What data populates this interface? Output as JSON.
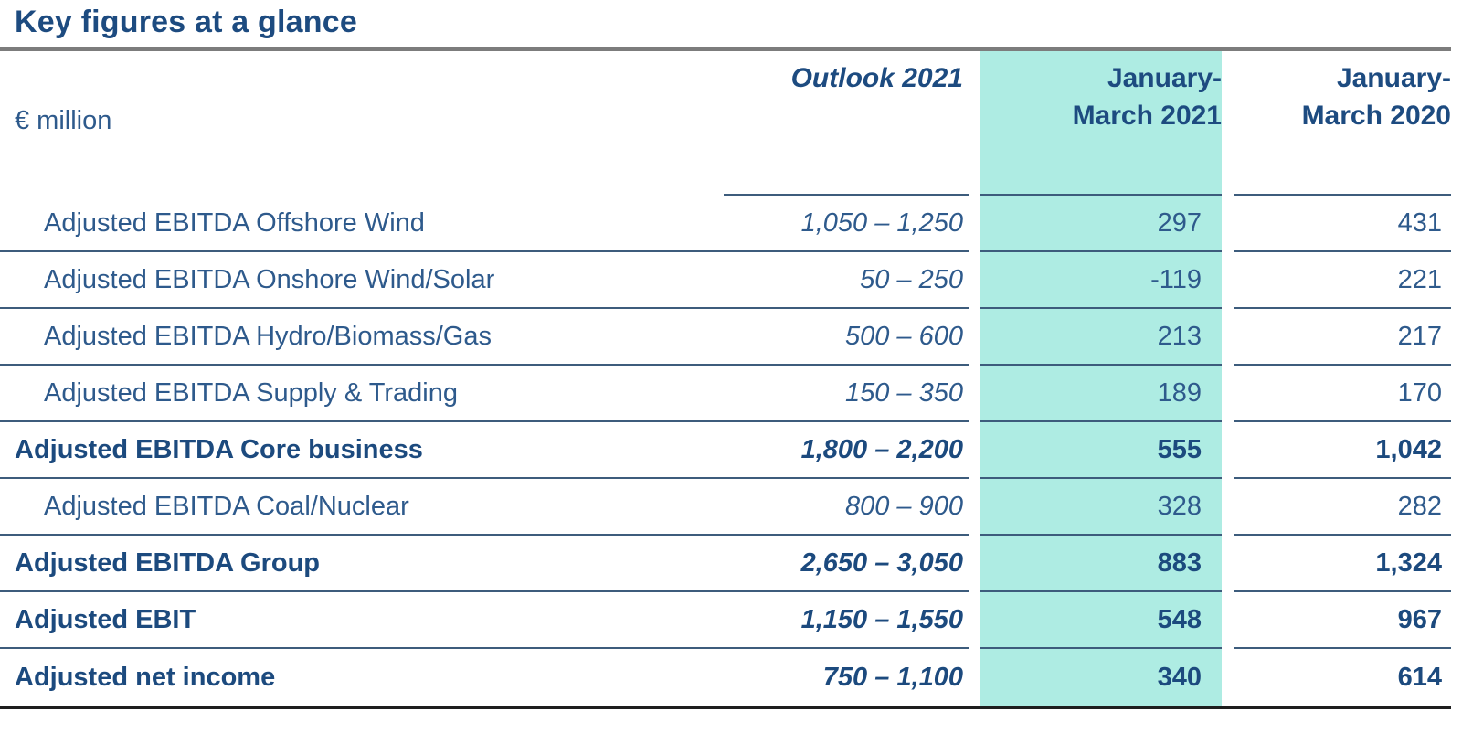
{
  "title": "Key figures at a glance",
  "table": {
    "unit_label": "€ million",
    "headers": {
      "outlook": "Outlook 2021",
      "q1_2021_line1": "January-",
      "q1_2021_line2": "March 2021",
      "q1_2020_line1": "January-",
      "q1_2020_line2": "March 2020"
    },
    "rows": [
      {
        "label": "Adjusted EBITDA Offshore Wind",
        "outlook": "1,050 – 1,250",
        "q1_2021": "297",
        "q1_2020": "431"
      },
      {
        "label": "Adjusted EBITDA Onshore Wind/Solar",
        "outlook": "50 – 250",
        "q1_2021": "-119",
        "q1_2020": "221"
      },
      {
        "label": "Adjusted EBITDA Hydro/Biomass/Gas",
        "outlook": "500 – 600",
        "q1_2021": "213",
        "q1_2020": "217"
      },
      {
        "label": "Adjusted EBITDA Supply & Trading",
        "outlook": "150 – 350",
        "q1_2021": "189",
        "q1_2020": "170"
      },
      {
        "label": "Adjusted EBITDA Core business",
        "outlook": "1,800 – 2,200",
        "q1_2021": "555",
        "q1_2020": "1,042"
      },
      {
        "label": "Adjusted EBITDA Coal/Nuclear",
        "outlook": "800 – 900",
        "q1_2021": "328",
        "q1_2020": "282"
      },
      {
        "label": "Adjusted EBITDA Group",
        "outlook": "2,650 – 3,050",
        "q1_2021": "883",
        "q1_2020": "1,324"
      },
      {
        "label": "Adjusted EBIT",
        "outlook": "1,150 – 1,550",
        "q1_2021": "548",
        "q1_2020": "967"
      },
      {
        "label": "Adjusted net income",
        "outlook": "750 – 1,100",
        "q1_2021": "340",
        "q1_2020": "614"
      }
    ]
  },
  "colors": {
    "highlight_teal": "#aeece3",
    "navy_bold": "#1c4a7e",
    "text_blue": "#2e5a8c",
    "rule_gray": "#7c7c7c"
  }
}
